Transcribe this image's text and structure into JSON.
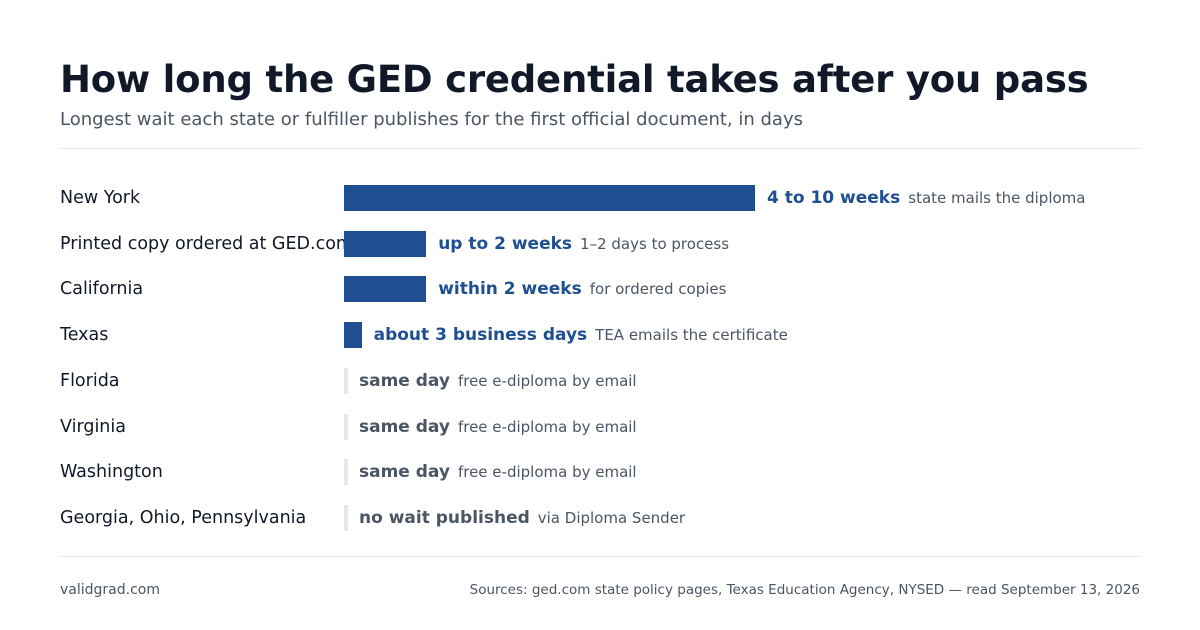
{
  "header": {
    "title": "How long the GED credential takes after you pass",
    "subtitle": "Longest wait each state or fulfiller publishes for the first official document, in days"
  },
  "footer": {
    "site": "validgrad.com",
    "sources": "Sources: ged.com state policy pages, Texas Education Agency, NYSED — read September 13, 2026"
  },
  "colors": {
    "bar": "#1f4f91",
    "zero_marker": "#e5e7eb",
    "muted_text": "#4b5563"
  },
  "chart_data": {
    "type": "bar",
    "orientation": "horizontal",
    "title": "How long the GED credential takes after you pass",
    "subtitle": "Longest wait each state or fulfiller publishes for the first official document, in days",
    "xlabel": "",
    "ylabel": "",
    "xlim": [
      0,
      70
    ],
    "grid": false,
    "categories": [
      "New York",
      "Printed copy ordered at GED.com",
      "California",
      "Texas",
      "Florida",
      "Virginia",
      "Washington",
      "Georgia, Ohio, Pennsylvania"
    ],
    "values": [
      70,
      14,
      14,
      3,
      0,
      0,
      0,
      0
    ],
    "value_labels": [
      "4 to 10 weeks",
      "up to 2 weeks",
      "within 2 weeks",
      "about 3 business days",
      "same day",
      "same day",
      "same day",
      "no wait published"
    ],
    "notes": [
      "state mails the diploma",
      "1–2 days to process",
      "for ordered copies",
      "TEA emails the certificate",
      "free e-diploma by email",
      "free e-diploma by email",
      "free e-diploma by email",
      "via Diploma Sender"
    ]
  }
}
